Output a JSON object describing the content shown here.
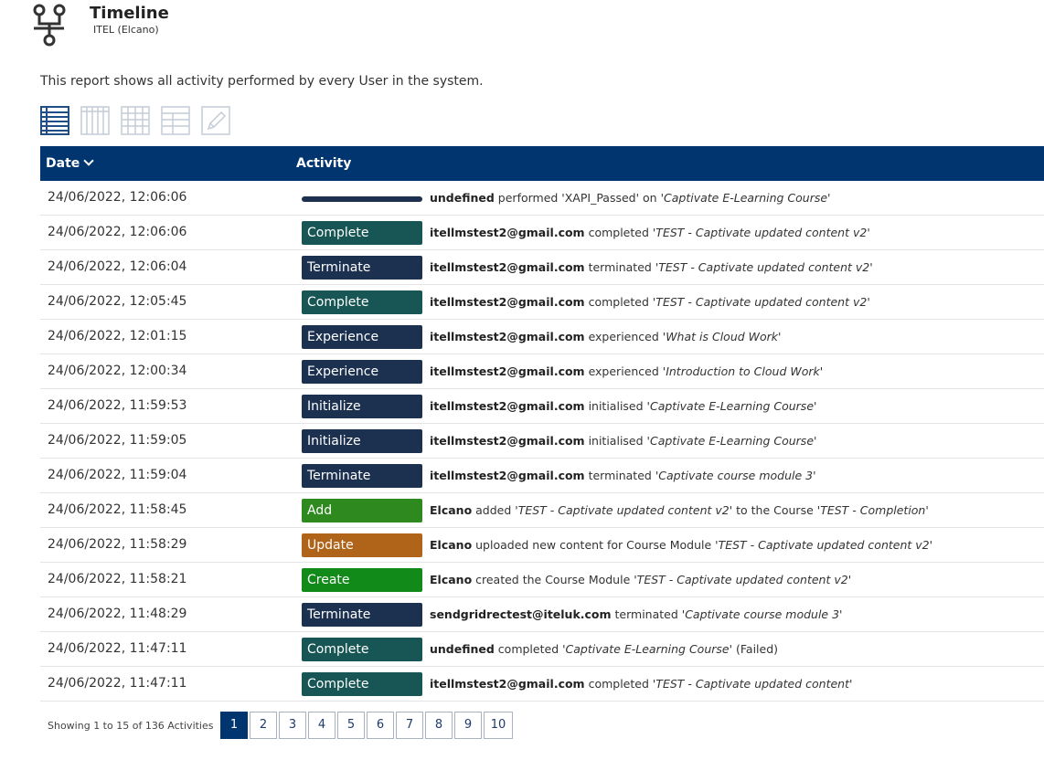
{
  "header": {
    "title": "Timeline",
    "subtitle": "ITEL (Elcano)",
    "icon": "branch-icon"
  },
  "description": "This report shows all activity performed by every User in the system.",
  "views": [
    {
      "name": "list-view-icon",
      "active": true
    },
    {
      "name": "columns-view-icon",
      "active": false
    },
    {
      "name": "grid-view-icon",
      "active": false
    },
    {
      "name": "table-view-icon",
      "active": false
    },
    {
      "name": "edit-icon",
      "active": false
    }
  ],
  "table": {
    "columns": {
      "date": "Date",
      "activity": "Activity"
    },
    "rows": [
      {
        "date": "24/06/2022, 12:06:06",
        "badge": "",
        "color": "#1e3050",
        "actor": "undefined",
        "verb": " performed 'XAPI_Passed' on ",
        "object": "'Captivate E-Learning Course'",
        "tail": ""
      },
      {
        "date": "24/06/2022, 12:06:06",
        "badge": "Complete",
        "color": "#175654",
        "actor": "itellmstest2@gmail.com",
        "verb": " completed ",
        "object": "'TEST - Captivate updated content v2'",
        "tail": ""
      },
      {
        "date": "24/06/2022, 12:06:04",
        "badge": "Terminate",
        "color": "#1c3050",
        "actor": "itellmstest2@gmail.com",
        "verb": " terminated ",
        "object": "'TEST - Captivate updated content v2'",
        "tail": ""
      },
      {
        "date": "24/06/2022, 12:05:45",
        "badge": "Complete",
        "color": "#175654",
        "actor": "itellmstest2@gmail.com",
        "verb": " completed ",
        "object": "'TEST - Captivate updated content v2'",
        "tail": ""
      },
      {
        "date": "24/06/2022, 12:01:15",
        "badge": "Experience",
        "color": "#1c3050",
        "actor": "itellmstest2@gmail.com",
        "verb": " experienced ",
        "object": "'What is Cloud Work'",
        "tail": ""
      },
      {
        "date": "24/06/2022, 12:00:34",
        "badge": "Experience",
        "color": "#1c3050",
        "actor": "itellmstest2@gmail.com",
        "verb": " experienced ",
        "object": "'Introduction to Cloud Work'",
        "tail": ""
      },
      {
        "date": "24/06/2022, 11:59:53",
        "badge": "Initialize",
        "color": "#1c3050",
        "actor": "itellmstest2@gmail.com",
        "verb": " initialised ",
        "object": "'Captivate E-Learning Course'",
        "tail": ""
      },
      {
        "date": "24/06/2022, 11:59:05",
        "badge": "Initialize",
        "color": "#1c3050",
        "actor": "itellmstest2@gmail.com",
        "verb": " initialised ",
        "object": "'Captivate E-Learning Course'",
        "tail": ""
      },
      {
        "date": "24/06/2022, 11:59:04",
        "badge": "Terminate",
        "color": "#1c3050",
        "actor": "itellmstest2@gmail.com",
        "verb": " terminated ",
        "object": "'Captivate course module 3'",
        "tail": ""
      },
      {
        "date": "24/06/2022, 11:58:45",
        "badge": "Add",
        "color": "#2e8a1e",
        "actor": "Elcano",
        "verb": " added ",
        "object": "'TEST - Captivate updated content v2'",
        "tail": " to the Course ",
        "tail_obj": "'TEST - Completion'"
      },
      {
        "date": "24/06/2022, 11:58:29",
        "badge": "Update",
        "color": "#b0641a",
        "actor": "Elcano",
        "verb": " uploaded new content for Course Module ",
        "object": "'TEST - Captivate updated content v2'",
        "tail": ""
      },
      {
        "date": "24/06/2022, 11:58:21",
        "badge": "Create",
        "color": "#128a1a",
        "actor": "Elcano",
        "verb": " created the Course Module ",
        "object": "'TEST - Captivate updated content v2'",
        "tail": ""
      },
      {
        "date": "24/06/2022, 11:48:29",
        "badge": "Terminate",
        "color": "#1c3050",
        "actor": "sendgridrectest@iteluk.com",
        "verb": " terminated ",
        "object": "'Captivate course module 3'",
        "tail": ""
      },
      {
        "date": "24/06/2022, 11:47:11",
        "badge": "Complete",
        "color": "#175654",
        "actor": "undefined",
        "verb": " completed ",
        "object": "'Captivate E-Learning Course'",
        "tail": " (Failed)"
      },
      {
        "date": "24/06/2022, 11:47:11",
        "badge": "Complete",
        "color": "#175654",
        "actor": "itellmstest2@gmail.com",
        "verb": " completed ",
        "object": "'TEST - Captivate updated content'",
        "tail": ""
      }
    ]
  },
  "pagination": {
    "info": "Showing 1 to 15 of 136 Activities",
    "pages": [
      "1",
      "2",
      "3",
      "4",
      "5",
      "6",
      "7",
      "8",
      "9",
      "10"
    ],
    "active": "1"
  }
}
